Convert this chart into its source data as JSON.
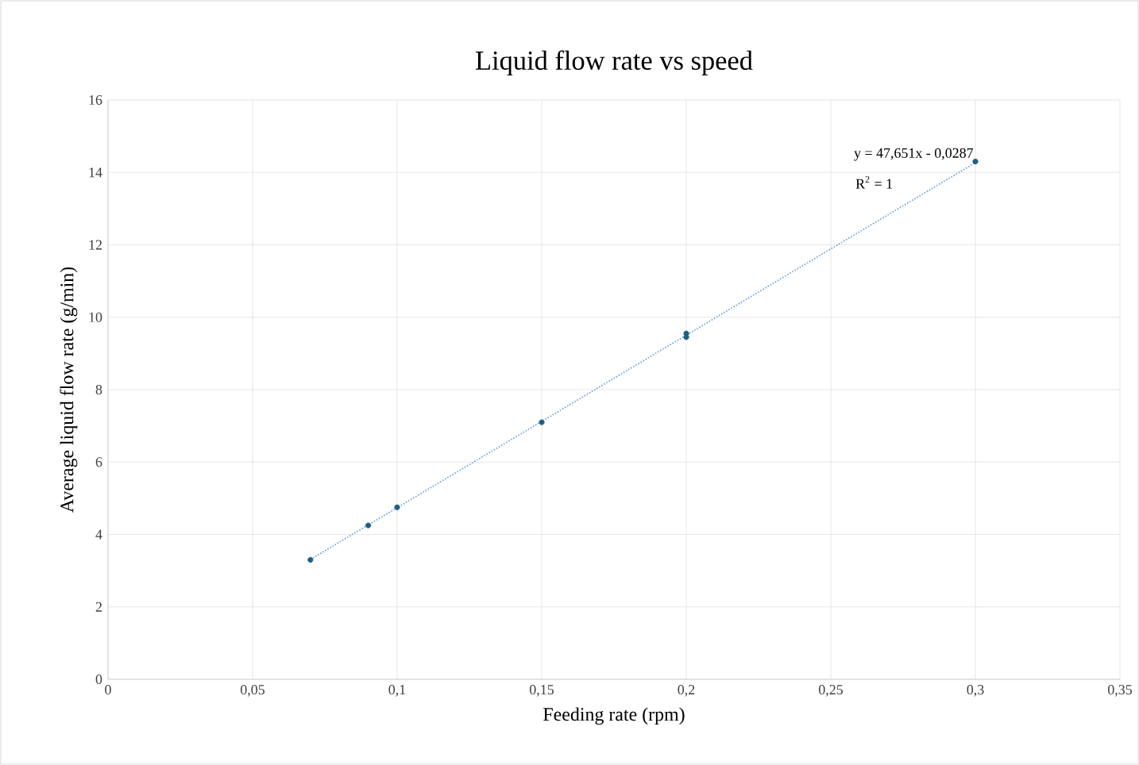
{
  "chart_data": {
    "type": "scatter",
    "title": "Liquid flow rate vs speed",
    "xlabel": "Feeding rate (rpm)",
    "ylabel": "Average liquid flow rate (g/min)",
    "xlim": [
      0,
      0.35
    ],
    "xticks": [
      0,
      {
        "value": 0.05,
        "label": "0,05"
      },
      {
        "value": 0.1,
        "label": "0,1"
      },
      {
        "value": 0.15,
        "label": "0,15"
      },
      {
        "value": 0.2,
        "label": "0,2"
      },
      {
        "value": 0.25,
        "label": "0,25"
      },
      {
        "value": 0.3,
        "label": "0,3"
      },
      {
        "value": 0.35,
        "label": "0,35"
      }
    ],
    "ylim": [
      0,
      16
    ],
    "yticks": [
      0,
      2,
      4,
      6,
      8,
      10,
      12,
      14,
      16
    ],
    "grid": true,
    "series": [
      {
        "color": "#1f5f85",
        "marker": "circle",
        "x": [
          0.07,
          0.09,
          0.1,
          0.15,
          0.2,
          0.2,
          0.3
        ],
        "values": [
          3.3,
          4.25,
          4.75,
          7.1,
          9.45,
          9.55,
          14.3
        ]
      },
      {
        "type": "line",
        "color": "#5b9bd5",
        "marker": "none",
        "line_style": "dotted",
        "x": [
          0.07,
          0.3
        ],
        "values": [
          3.31,
          14.27
        ]
      }
    ],
    "annotations": [
      {
        "text": "y = 47,651x - 0,0287",
        "x": 0.3,
        "y": 14.27
      },
      "R$^{2}$ = 1"
    ]
  }
}
